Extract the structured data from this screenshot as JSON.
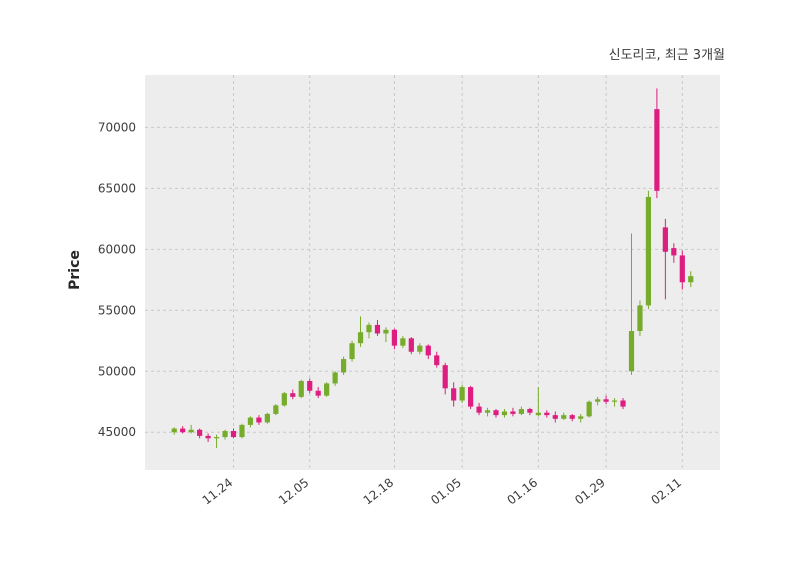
{
  "chart_data": {
    "type": "candlestick",
    "title": "신도리코, 최근 3개월",
    "ylabel": "Price",
    "ylim": [
      41900,
      74300
    ],
    "y_ticks": [
      45000,
      50000,
      55000,
      60000,
      65000,
      70000
    ],
    "x_ticks": [
      {
        "label": "11.24",
        "index": 7
      },
      {
        "label": "12.05",
        "index": 16
      },
      {
        "label": "12.18",
        "index": 26
      },
      {
        "label": "01.05",
        "index": 34
      },
      {
        "label": "01.16",
        "index": 43
      },
      {
        "label": "01.29",
        "index": 51
      },
      {
        "label": "02.11",
        "index": 60
      }
    ],
    "grid": true,
    "colors": {
      "up": "#77ab2c",
      "down": "#dd1d7f",
      "plot_bg": "#ededed",
      "grid_line": "#c9c9c9",
      "tick_text": "#3d3d3d"
    },
    "ohlc_note": "each candle is [open, high, low, close]",
    "candles": [
      [
        45000,
        45400,
        44800,
        45300
      ],
      [
        45300,
        45500,
        44900,
        45000
      ],
      [
        45000,
        45600,
        44900,
        45200
      ],
      [
        45200,
        45300,
        44500,
        44700
      ],
      [
        44700,
        44900,
        44200,
        44500
      ],
      [
        44500,
        44800,
        43700,
        44600
      ],
      [
        44600,
        45200,
        44400,
        45100
      ],
      [
        45100,
        45300,
        44500,
        44600
      ],
      [
        44600,
        45700,
        44500,
        45600
      ],
      [
        45600,
        46300,
        45400,
        46200
      ],
      [
        46200,
        46400,
        45600,
        45800
      ],
      [
        45800,
        46600,
        45700,
        46500
      ],
      [
        46500,
        47300,
        46400,
        47200
      ],
      [
        47200,
        48300,
        47100,
        48200
      ],
      [
        48200,
        48500,
        47700,
        47900
      ],
      [
        47900,
        49300,
        47800,
        49200
      ],
      [
        49200,
        49400,
        48200,
        48400
      ],
      [
        48400,
        48700,
        47800,
        48000
      ],
      [
        48000,
        49100,
        47900,
        49000
      ],
      [
        49000,
        50000,
        48800,
        49900
      ],
      [
        49900,
        51200,
        49700,
        51000
      ],
      [
        51000,
        52500,
        50800,
        52300
      ],
      [
        52300,
        54500,
        52000,
        53200
      ],
      [
        53200,
        54000,
        52700,
        53800
      ],
      [
        53800,
        54200,
        52900,
        53100
      ],
      [
        53100,
        53600,
        52400,
        53400
      ],
      [
        53400,
        53500,
        51800,
        52100
      ],
      [
        52100,
        52900,
        51900,
        52700
      ],
      [
        52700,
        52800,
        51400,
        51600
      ],
      [
        51600,
        52300,
        51400,
        52100
      ],
      [
        52100,
        52200,
        51000,
        51300
      ],
      [
        51300,
        51600,
        50300,
        50500
      ],
      [
        50500,
        50700,
        48100,
        48600
      ],
      [
        48600,
        49100,
        47100,
        47600
      ],
      [
        47600,
        48900,
        47400,
        48700
      ],
      [
        48700,
        48800,
        46900,
        47100
      ],
      [
        47100,
        47400,
        46400,
        46600
      ],
      [
        46600,
        47000,
        46300,
        46800
      ],
      [
        46800,
        46900,
        46200,
        46400
      ],
      [
        46400,
        46900,
        46200,
        46700
      ],
      [
        46700,
        47000,
        46300,
        46500
      ],
      [
        46500,
        47100,
        46400,
        46900
      ],
      [
        46900,
        47000,
        46400,
        46600
      ],
      [
        46400,
        48700,
        46300,
        46600
      ],
      [
        46600,
        46800,
        46200,
        46400
      ],
      [
        46400,
        46700,
        45800,
        46100
      ],
      [
        46100,
        46600,
        46000,
        46400
      ],
      [
        46400,
        46500,
        45900,
        46100
      ],
      [
        46100,
        46500,
        45800,
        46300
      ],
      [
        46300,
        47600,
        46200,
        47500
      ],
      [
        47500,
        47900,
        47200,
        47700
      ],
      [
        47700,
        48000,
        47300,
        47500
      ],
      [
        47500,
        47800,
        47100,
        47600
      ],
      [
        47600,
        47800,
        46900,
        47100
      ],
      [
        50000,
        61300,
        49700,
        53300
      ],
      [
        53300,
        55800,
        52900,
        55400
      ],
      [
        55400,
        64800,
        55100,
        64300
      ],
      [
        71500,
        73200,
        64200,
        64800
      ],
      [
        61800,
        62500,
        55900,
        59800
      ],
      [
        60100,
        60500,
        58900,
        59500
      ],
      [
        59500,
        59900,
        56700,
        57300
      ],
      [
        57300,
        58200,
        56900,
        57800
      ]
    ]
  }
}
